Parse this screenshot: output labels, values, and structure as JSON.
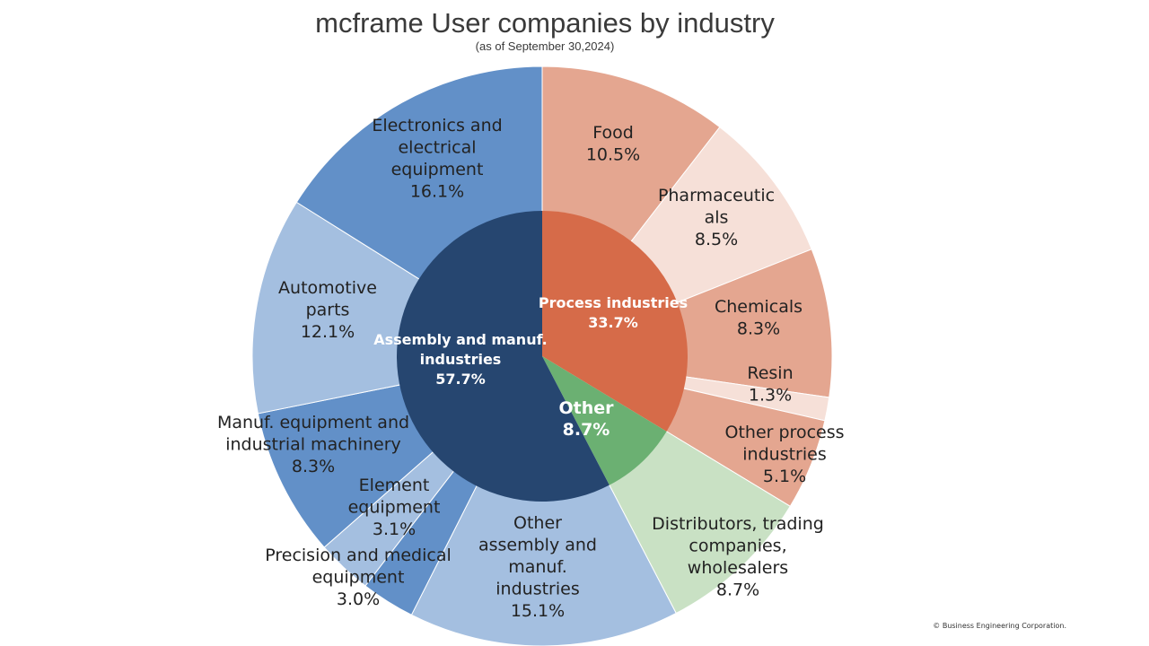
{
  "title": "mcframe User companies by industry",
  "subtitle": "(as of September 30,2024)",
  "copyright": "© Business Engineering Corporation.",
  "chart_data": {
    "type": "pie",
    "variant": "sunburst",
    "start_angle_deg": 0,
    "direction": "clockwise",
    "inner_ring": [
      {
        "name": "Process industries",
        "value": 33.7,
        "label": "33.7%",
        "color": "#D66B49"
      },
      {
        "name": "Other",
        "value": 8.7,
        "label": "8.7%",
        "color": "#6BB072"
      },
      {
        "name": "Assembly and manuf. industries",
        "value": 57.7,
        "label": "57.7%",
        "color": "#264670"
      }
    ],
    "outer_ring": [
      {
        "name": "Food",
        "value": 10.5,
        "label": "10.5%",
        "parent": "Process industries",
        "color": "#E4A690"
      },
      {
        "name": "Pharmaceuticals",
        "value": 8.5,
        "label": "8.5%",
        "parent": "Process industries",
        "color": "#F6E0D8"
      },
      {
        "name": "Chemicals",
        "value": 8.3,
        "label": "8.3%",
        "parent": "Process industries",
        "color": "#E4A690"
      },
      {
        "name": "Resin",
        "value": 1.3,
        "label": "1.3%",
        "parent": "Process industries",
        "color": "#F6E0D8"
      },
      {
        "name": "Other process industries",
        "value": 5.1,
        "label": "5.1%",
        "parent": "Process industries",
        "color": "#E4A690"
      },
      {
        "name": "Distributors, trading companies, wholesalers",
        "value": 8.7,
        "label": "8.7%",
        "parent": "Other",
        "color": "#C9E1C4"
      },
      {
        "name": "Other assembly and manuf. industries",
        "value": 15.1,
        "label": "15.1%",
        "parent": "Assembly and manuf. industries",
        "color": "#A4BFE0"
      },
      {
        "name": "Precision and medical equipment",
        "value": 3.0,
        "label": "3.0%",
        "parent": "Assembly and manuf. industries",
        "color": "#6290C8"
      },
      {
        "name": "Element equipment",
        "value": 3.1,
        "label": "3.1%",
        "parent": "Assembly and manuf. industries",
        "color": "#A4BFE0"
      },
      {
        "name": "Manuf. equipment and industrial machinery",
        "value": 8.3,
        "label": "8.3%",
        "parent": "Assembly and manuf. industries",
        "color": "#6290C8"
      },
      {
        "name": "Automotive parts",
        "value": 12.1,
        "label": "12.1%",
        "parent": "Assembly and manuf. industries",
        "color": "#A4BFE0"
      },
      {
        "name": "Electronics and electrical equipment",
        "value": 16.1,
        "label": "16.1%",
        "parent": "Assembly and manuf. industries",
        "color": "#6290C8"
      }
    ],
    "inner_labels": [
      {
        "lines": [
          "Process industries",
          "33.7%"
        ]
      },
      {
        "lines": [
          "Other",
          "8.7%"
        ]
      },
      {
        "lines": [
          "Assembly and manuf.",
          "industries",
          "57.7%"
        ]
      }
    ],
    "outer_labels": [
      {
        "lines": [
          "Food",
          "10.5%"
        ]
      },
      {
        "lines": [
          "Pharmaceutic",
          "als",
          "8.5%"
        ]
      },
      {
        "lines": [
          "Chemicals",
          "8.3%"
        ]
      },
      {
        "lines": [
          "Resin",
          "1.3%"
        ]
      },
      {
        "lines": [
          "Other process",
          "industries",
          "5.1%"
        ]
      },
      {
        "lines": [
          "Distributors, trading",
          "companies,",
          "wholesalers",
          "8.7%"
        ]
      },
      {
        "lines": [
          "Other",
          "assembly and",
          "manuf.",
          "industries",
          "15.1%"
        ]
      },
      {
        "lines": [
          "Precision and medical",
          "equipment",
          "3.0%"
        ]
      },
      {
        "lines": [
          "Element",
          "equipment",
          "3.1%"
        ]
      },
      {
        "lines": [
          "Manuf. equipment and",
          "industrial machinery",
          "8.3%"
        ]
      },
      {
        "lines": [
          "Automotive",
          "parts",
          "12.1%"
        ]
      },
      {
        "lines": [
          "Electronics and",
          "electrical",
          "equipment",
          "16.1%"
        ]
      }
    ],
    "legend": "none"
  }
}
